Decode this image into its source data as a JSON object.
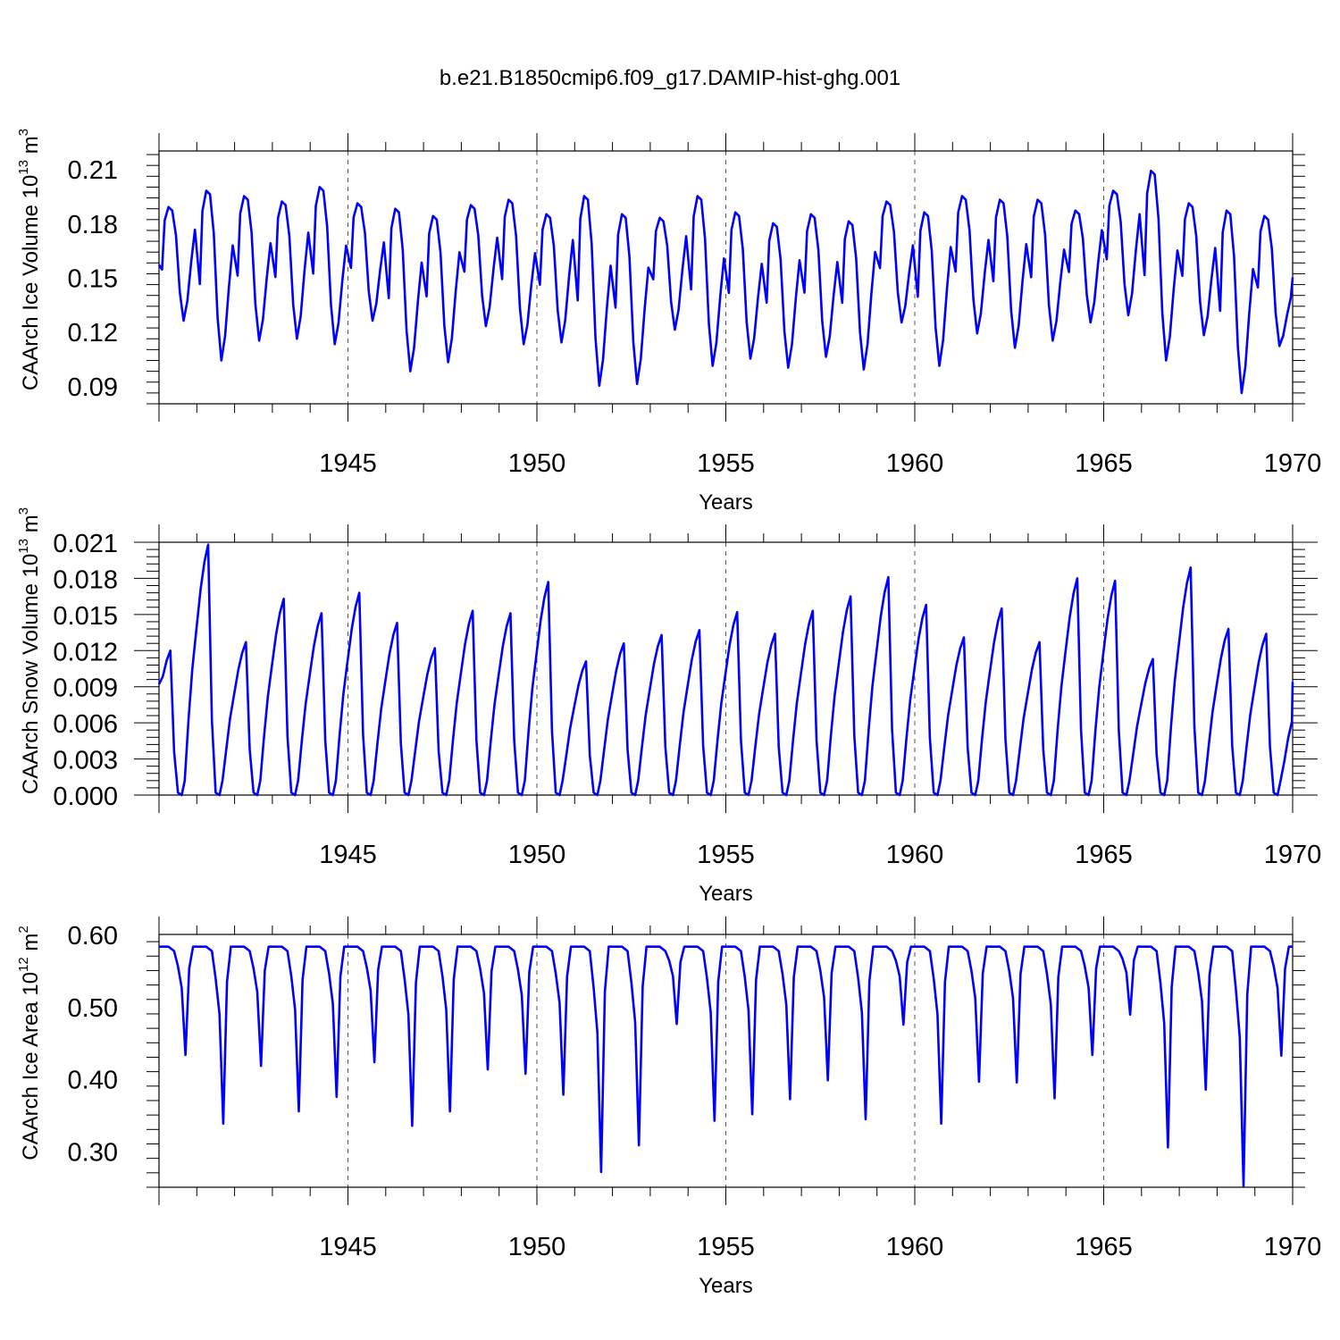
{
  "figure": {
    "title": "b.e21.B1850cmip6.f09_g17.DAMIP-hist-ghg.001"
  },
  "colors": {
    "series": "#0000ff",
    "axes": "#000000",
    "grid": "#555555"
  },
  "chart_data": [
    {
      "type": "line",
      "id": "ice-volume",
      "ylabel": "CAArch Ice Volume 10^13 m^3",
      "ylabel_base": "CAArch Ice Volume 10",
      "ylabel_exp": "13",
      "ylabel_unit": "m",
      "ylabel_unit_exp": "3",
      "xlabel": "Years",
      "xlim": [
        1940.0,
        1970.0
      ],
      "ylim": [
        0.08,
        0.22
      ],
      "yticks": [
        0.09,
        0.12,
        0.15,
        0.18,
        0.21
      ],
      "ytick_labels": [
        "0.09",
        "0.12",
        "0.15",
        "0.18",
        "0.21"
      ],
      "xticks": [
        1945,
        1950,
        1955,
        1960,
        1965,
        1970
      ],
      "xtick_labels": [
        "1945",
        "1950",
        "1955",
        "1960",
        "1965",
        "1970"
      ],
      "grid_x": true,
      "series": [
        {
          "name": "CAArch Ice Volume",
          "x": [
            1940.0,
            1941.0,
            1942.0,
            1943.0,
            1944.0,
            1945.0,
            1946.0,
            1947.0,
            1948.0,
            1949.0,
            1950.0,
            1951.0,
            1952.0,
            1953.0,
            1954.0,
            1955.0,
            1956.0,
            1957.0,
            1958.0,
            1959.0,
            1960.0,
            1961.0,
            1962.0,
            1963.0,
            1964.0,
            1965.0,
            1966.0,
            1967.0,
            1968.0,
            1969.0,
            1970.0
          ],
          "winter_max": [
            0.189,
            0.198,
            0.195,
            0.192,
            0.2,
            0.191,
            0.188,
            0.184,
            0.19,
            0.193,
            0.185,
            0.195,
            0.185,
            0.183,
            0.195,
            0.186,
            0.18,
            0.185,
            0.181,
            0.192,
            0.186,
            0.195,
            0.193,
            0.193,
            0.187,
            0.198,
            0.209,
            0.191,
            0.187,
            0.184,
            0.15
          ],
          "summer_min": [
            0.126,
            0.104,
            0.115,
            0.116,
            0.113,
            0.126,
            0.098,
            0.103,
            0.123,
            0.113,
            0.114,
            0.09,
            0.091,
            0.121,
            0.101,
            0.105,
            0.1,
            0.106,
            0.099,
            0.125,
            0.101,
            0.119,
            0.111,
            0.115,
            0.125,
            0.129,
            0.104,
            0.118,
            0.086,
            0.112,
            0.15
          ]
        }
      ]
    },
    {
      "type": "line",
      "id": "snow-volume",
      "ylabel": "CAArch Snow Volume 10^13 m^3",
      "ylabel_base": "CAArch Snow Volume 10",
      "ylabel_exp": "13",
      "ylabel_unit": "m",
      "ylabel_unit_exp": "3",
      "xlabel": "Years",
      "xlim": [
        1940.0,
        1970.0
      ],
      "ylim": [
        0.0,
        0.021
      ],
      "yticks": [
        0.0,
        0.003,
        0.006,
        0.009,
        0.012,
        0.015,
        0.018,
        0.021
      ],
      "ytick_labels": [
        "0.000",
        "0.003",
        "0.006",
        "0.009",
        "0.012",
        "0.015",
        "0.018",
        "0.021"
      ],
      "xticks": [
        1945,
        1950,
        1955,
        1960,
        1965,
        1970
      ],
      "xtick_labels": [
        "1945",
        "1950",
        "1955",
        "1960",
        "1965",
        "1970"
      ],
      "grid_x": true,
      "series": [
        {
          "name": "CAArch Snow Volume",
          "spring_peak": [
            0.012,
            0.0208,
            0.0127,
            0.0163,
            0.0151,
            0.0168,
            0.0143,
            0.0122,
            0.0153,
            0.0151,
            0.0177,
            0.0111,
            0.0126,
            0.0133,
            0.0137,
            0.0152,
            0.0134,
            0.0153,
            0.0165,
            0.0181,
            0.0158,
            0.0131,
            0.0155,
            0.0127,
            0.018,
            0.0178,
            0.0113,
            0.0189,
            0.0138,
            0.0134,
            0.0094
          ]
        }
      ]
    },
    {
      "type": "line",
      "id": "ice-area",
      "ylabel": "CAArch Ice Area 10^12 m^2",
      "ylabel_base": "CAArch Ice Area 10",
      "ylabel_exp": "12",
      "ylabel_unit": "m",
      "ylabel_unit_exp": "2",
      "xlabel": "Years",
      "xlim": [
        1940.0,
        1970.0
      ],
      "ylim": [
        0.25,
        0.6
      ],
      "yticks": [
        0.3,
        0.4,
        0.5,
        0.6
      ],
      "ytick_labels": [
        "0.30",
        "0.40",
        "0.50",
        "0.60"
      ],
      "xticks": [
        1945,
        1950,
        1955,
        1960,
        1965,
        1970
      ],
      "xtick_labels": [
        "1945",
        "1950",
        "1955",
        "1960",
        "1965",
        "1970"
      ],
      "grid_x": true,
      "series": [
        {
          "name": "CAArch Ice Area",
          "winter_max": 0.583,
          "summer_min": [
            0.433,
            0.338,
            0.418,
            0.355,
            0.375,
            0.423,
            0.335,
            0.355,
            0.413,
            0.407,
            0.378,
            0.271,
            0.308,
            0.476,
            0.342,
            0.351,
            0.372,
            0.398,
            0.344,
            0.475,
            0.338,
            0.396,
            0.395,
            0.373,
            0.433,
            0.489,
            0.305,
            0.385,
            0.252,
            0.432
          ]
        }
      ]
    }
  ]
}
